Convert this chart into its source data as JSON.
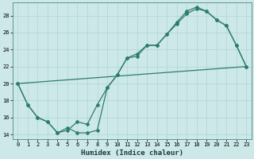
{
  "xlabel": "Humidex (Indice chaleur)",
  "line_color": "#2d7d6e",
  "bg_color": "#cde8e8",
  "grid_color": "#b0d4d4",
  "xlim": [
    -0.5,
    23.5
  ],
  "ylim": [
    13.5,
    29.5
  ],
  "yticks": [
    14,
    16,
    18,
    20,
    22,
    24,
    26,
    28
  ],
  "xticks": [
    0,
    1,
    2,
    3,
    4,
    5,
    6,
    7,
    8,
    9,
    10,
    11,
    12,
    13,
    14,
    15,
    16,
    17,
    18,
    19,
    20,
    21,
    22,
    23
  ],
  "line1_x": [
    0,
    1,
    2,
    3,
    4,
    5,
    6,
    7,
    8,
    9,
    10,
    11,
    12,
    13,
    14,
    15,
    16,
    17,
    18,
    19,
    20,
    21,
    22,
    23
  ],
  "line1_y": [
    20,
    17.5,
    16,
    15.5,
    14.2,
    14.5,
    15.5,
    15.2,
    17.5,
    19.5,
    21.0,
    23.0,
    23.2,
    24.5,
    24.5,
    25.8,
    27.0,
    28.2,
    28.8,
    28.5,
    27.5,
    26.8,
    24.5,
    22.0
  ],
  "line2_x": [
    0,
    1,
    2,
    3,
    4,
    5,
    6,
    7,
    8,
    9,
    10,
    11,
    12,
    13,
    14,
    15,
    16,
    17,
    18,
    19,
    20,
    21,
    22,
    23
  ],
  "line2_y": [
    20,
    17.5,
    16,
    15.5,
    14.2,
    14.8,
    14.2,
    14.2,
    14.5,
    19.5,
    21.0,
    23.0,
    23.5,
    24.5,
    24.5,
    25.8,
    27.2,
    28.5,
    29.0,
    28.5,
    27.5,
    26.8,
    24.5,
    22.0
  ],
  "line3_x": [
    0,
    23
  ],
  "line3_y": [
    20,
    22
  ],
  "marker_size": 2.0,
  "linewidth": 0.9,
  "xlabel_fontsize": 6.5,
  "tick_fontsize": 5.0
}
